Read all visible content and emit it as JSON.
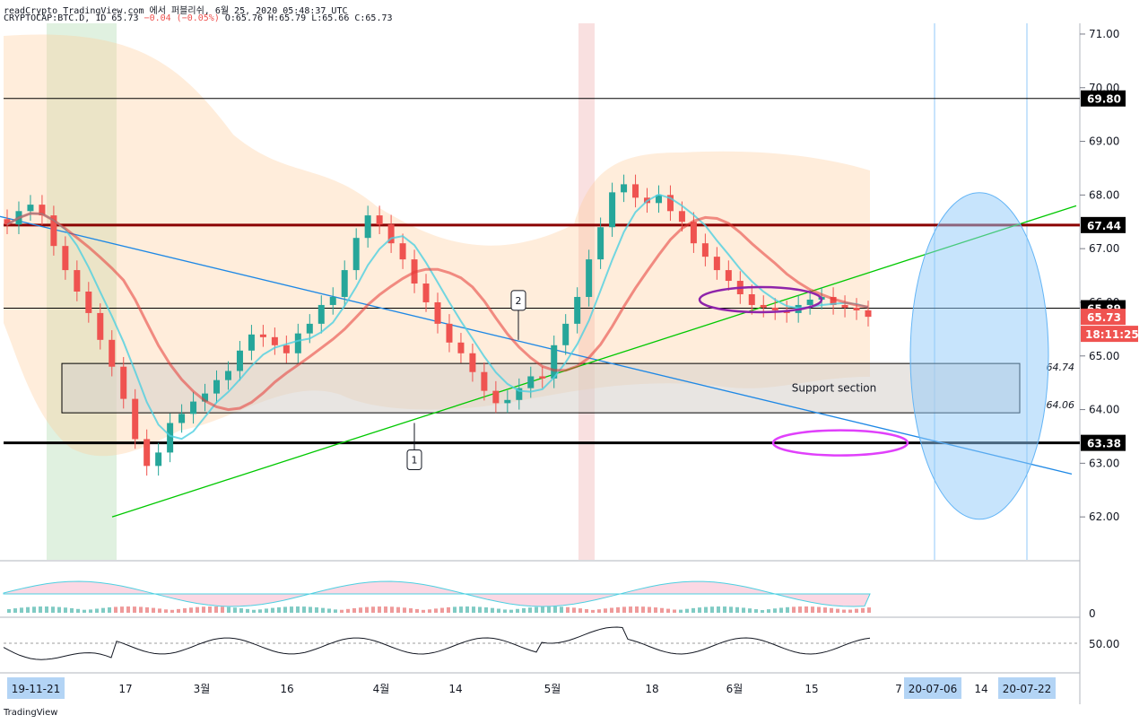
{
  "header": {
    "line1": "readCrypto TradingView.com 에서 퍼블리쉬, 6월 25, 2020 05:48:37 UTC",
    "symbol": "CRYPTOCAP:BTC.D, 1D 65.73",
    "change": "−0.04 (−0.05%)",
    "ohlc": "O:65.76 H:65.79 L:65.66 C:65.73"
  },
  "branding": "TradingView",
  "chart_data": {
    "type": "candlestick",
    "y_axis": {
      "ticks": [
        62.0,
        63.0,
        64.0,
        65.0,
        66.0,
        67.0,
        68.0,
        69.0,
        70.0,
        71.0
      ],
      "tick_labels": [
        "62.00",
        "63.00",
        "64.00",
        "65.00",
        "66.00",
        "67.00",
        "68.00",
        "69.00",
        "70.00",
        "71.00"
      ],
      "ylim": [
        61.2,
        71.2
      ]
    },
    "x_axis": {
      "tick_labels": [
        "19-11-21",
        "17",
        "3월",
        "16",
        "4월",
        "14",
        "5월",
        "18",
        "6월",
        "15",
        "7",
        "20-07-06",
        "14",
        "20-07-22"
      ]
    },
    "price_labels": [
      {
        "value": 69.8,
        "text": "69.80",
        "bg": "#000000"
      },
      {
        "value": 67.44,
        "text": "67.44",
        "bg": "#000000"
      },
      {
        "value": 65.89,
        "text": "65.89",
        "bg": "#000000"
      },
      {
        "value": 65.73,
        "text": "65.73",
        "bg": "#ef5350"
      },
      {
        "value": 63.38,
        "text": "63.38",
        "bg": "#000000"
      }
    ],
    "countdown": "18:11:25",
    "horizontal_lines": [
      {
        "value": 69.8,
        "color": "#000000",
        "width": 1
      },
      {
        "value": 67.44,
        "color": "#8b0000",
        "width": 3
      },
      {
        "value": 65.89,
        "color": "#000000",
        "width": 1
      },
      {
        "value": 63.38,
        "color": "#000000",
        "width": 3
      }
    ],
    "support_box": {
      "top": 64.86,
      "bottom": 63.94,
      "label": "Support section",
      "upper_value": "64.74",
      "lower_value": "64.06"
    },
    "trendlines": [
      {
        "color": "#1e88e5",
        "from": [
          0,
          67.6
        ],
        "to": [
          1195,
          62.8
        ]
      },
      {
        "color": "#00c800",
        "from": [
          125,
          62.0
        ],
        "to": [
          1200,
          67.8
        ]
      }
    ],
    "callouts": [
      {
        "label": "1",
        "value": 63.75
      },
      {
        "label": "2",
        "value": 65.3
      }
    ],
    "series": [
      {
        "name": "candles",
        "values": [
          67.45,
          67.7,
          67.82,
          67.62,
          67.05,
          66.6,
          66.2,
          65.8,
          65.3,
          64.8,
          64.2,
          63.45,
          62.95,
          63.2,
          63.75,
          63.92,
          64.15,
          64.3,
          64.55,
          64.72,
          65.1,
          65.4,
          65.35,
          65.2,
          65.05,
          65.42,
          65.6,
          65.95,
          66.1,
          66.6,
          67.2,
          67.62,
          67.45,
          67.1,
          66.8,
          66.35,
          66.0,
          65.6,
          65.25,
          65.05,
          64.7,
          64.35,
          64.12,
          64.18,
          64.4,
          64.62,
          64.58,
          65.2,
          65.6,
          66.1,
          66.8,
          67.4,
          68.05,
          68.2,
          67.95,
          67.85,
          68.0,
          67.7,
          67.5,
          67.1,
          66.85,
          66.6,
          66.4,
          66.15,
          65.95,
          65.9,
          65.85,
          65.8,
          65.95,
          66.05,
          66.1,
          65.95,
          65.9,
          65.85,
          65.73
        ]
      }
    ],
    "forecast_ellipse": {
      "center_value": 65.0,
      "label_start": "20-07-06",
      "label_end": "20-07-22"
    },
    "oscillator_axis_label": "0",
    "lower_axis_label": "50.00"
  }
}
